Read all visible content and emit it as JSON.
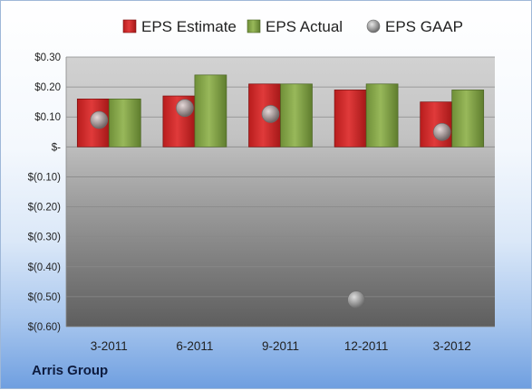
{
  "chart_data": {
    "type": "bar",
    "categories": [
      "3-2011",
      "6-2011",
      "9-2011",
      "12-2011",
      "3-2012"
    ],
    "series": [
      {
        "name": "EPS Estimate",
        "values": [
          0.16,
          0.17,
          0.21,
          0.19,
          0.15
        ],
        "color": "#d42a2a",
        "mark": "bar"
      },
      {
        "name": "EPS Actual",
        "values": [
          0.16,
          0.24,
          0.21,
          0.21,
          0.19
        ],
        "color": "#86a64a",
        "mark": "bar"
      },
      {
        "name": "EPS GAAP",
        "values": [
          0.09,
          0.13,
          0.11,
          -0.51,
          0.05
        ],
        "color": "#9a9a9a",
        "mark": "dot"
      }
    ],
    "y_ticks": [
      {
        "value": 0.3,
        "label": "$0.30"
      },
      {
        "value": 0.2,
        "label": "$0.20"
      },
      {
        "value": 0.1,
        "label": "$0.10"
      },
      {
        "value": 0.0,
        "label": "$-"
      },
      {
        "value": -0.1,
        "label": "$(0.10)"
      },
      {
        "value": -0.2,
        "label": "$(0.20)"
      },
      {
        "value": -0.3,
        "label": "$(0.30)"
      },
      {
        "value": -0.4,
        "label": "$(0.40)"
      },
      {
        "value": -0.5,
        "label": "$(0.50)"
      },
      {
        "value": -0.6,
        "label": "$(0.60)"
      }
    ],
    "ylim": [
      -0.6,
      0.3
    ],
    "grid": true,
    "legend_position": "top"
  },
  "footer": {
    "label": "Arris Group"
  }
}
